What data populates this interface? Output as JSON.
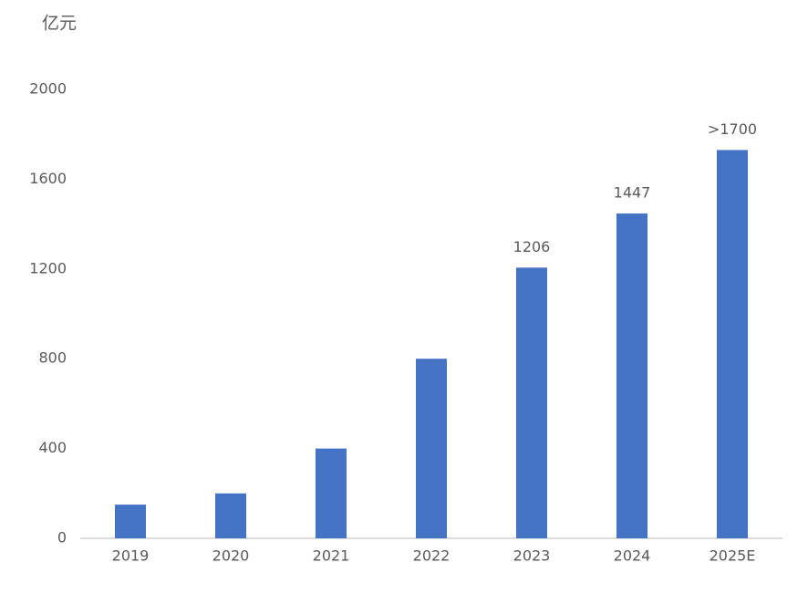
{
  "chart_data": {
    "type": "bar",
    "y_label": "亿元",
    "categories": [
      "2019",
      "2020",
      "2021",
      "2022",
      "2023",
      "2024",
      "2025E"
    ],
    "values": [
      150,
      200,
      400,
      800,
      1206,
      1447,
      1730
    ],
    "value_labels": [
      null,
      null,
      null,
      null,
      "1206",
      "1447",
      ">1700"
    ],
    "color": "#4472c4",
    "ylim": [
      0,
      2000
    ],
    "yticks": [
      0,
      400,
      800,
      1200,
      1600,
      2000
    ],
    "grid": false
  }
}
